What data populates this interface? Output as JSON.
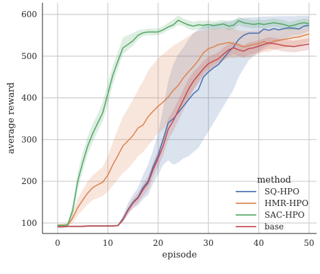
{
  "chart_data": {
    "type": "line",
    "xlabel": "episode",
    "ylabel": "average reward",
    "xlim": [
      -3,
      51.5
    ],
    "ylim": [
      75,
      628
    ],
    "xticks": [
      0,
      10,
      20,
      30,
      40,
      50
    ],
    "yticks": [
      100,
      200,
      300,
      400,
      500,
      600
    ],
    "xtick_labels": [
      "0",
      "10",
      "20",
      "30",
      "40",
      "50"
    ],
    "ytick_labels": [
      "100",
      "200",
      "300",
      "400",
      "500",
      "600"
    ],
    "grid": true,
    "legend": {
      "title": "method",
      "placement": "lower-right",
      "entries": [
        "SQ-HPO",
        "HMR-HPO",
        "SAC-HPO",
        "base"
      ]
    },
    "x": [
      0,
      1,
      2,
      3,
      4,
      5,
      6,
      7,
      8,
      9,
      10,
      11,
      12,
      13,
      14,
      15,
      16,
      17,
      18,
      19,
      20,
      21,
      22,
      23,
      24,
      25,
      26,
      27,
      28,
      29,
      30,
      31,
      32,
      33,
      34,
      35,
      36,
      37,
      38,
      39,
      40,
      41,
      42,
      43,
      44,
      45,
      46,
      47,
      48,
      49,
      50
    ],
    "series": [
      {
        "name": "SQ-HPO",
        "color": "#4c72b0",
        "values": [
          91,
          91,
          92,
          92,
          92,
          92,
          93,
          93,
          93,
          93,
          93,
          93,
          94,
          110,
          132,
          150,
          162,
          185,
          200,
          235,
          262,
          300,
          340,
          350,
          365,
          380,
          395,
          410,
          420,
          450,
          462,
          472,
          480,
          495,
          510,
          522,
          540,
          550,
          555,
          555,
          555,
          565,
          562,
          566,
          563,
          566,
          568,
          567,
          565,
          572,
          574
        ],
        "band_low": [
          89,
          89,
          90,
          90,
          90,
          90,
          91,
          91,
          91,
          91,
          91,
          91,
          92,
          103,
          120,
          135,
          142,
          158,
          167,
          195,
          215,
          240,
          250,
          240,
          245,
          255,
          260,
          270,
          280,
          300,
          320,
          340,
          360,
          380,
          400,
          420,
          450,
          470,
          490,
          500,
          510,
          520,
          525,
          530,
          535,
          540,
          545,
          550,
          550,
          555,
          560
        ],
        "band_high": [
          93,
          93,
          94,
          94,
          94,
          94,
          95,
          95,
          95,
          95,
          95,
          95,
          96,
          118,
          148,
          168,
          185,
          215,
          240,
          275,
          315,
          375,
          440,
          480,
          505,
          520,
          540,
          555,
          565,
          572,
          575,
          578,
          580,
          582,
          585,
          587,
          590,
          592,
          593,
          593,
          594,
          595,
          595,
          595,
          596,
          596,
          596,
          596,
          597,
          597,
          597
        ]
      },
      {
        "name": "HMR-HPO",
        "color": "#dd8452",
        "values": [
          95,
          95,
          95,
          112,
          137,
          155,
          172,
          185,
          192,
          198,
          215,
          240,
          262,
          285,
          297,
          310,
          328,
          335,
          355,
          368,
          380,
          390,
          402,
          418,
          430,
          448,
          462,
          475,
          490,
          508,
          518,
          522,
          528,
          530,
          533,
          530,
          527,
          522,
          525,
          528,
          530,
          535,
          530,
          536,
          538,
          540,
          542,
          545,
          546,
          550,
          553
        ],
        "band_low": [
          92,
          92,
          92,
          100,
          118,
          132,
          145,
          155,
          160,
          165,
          175,
          190,
          205,
          220,
          230,
          245,
          260,
          270,
          285,
          300,
          315,
          325,
          340,
          355,
          370,
          385,
          400,
          420,
          440,
          460,
          470,
          478,
          485,
          490,
          495,
          495,
          497,
          495,
          497,
          500,
          505,
          510,
          510,
          515,
          518,
          520,
          522,
          525,
          526,
          530,
          535
        ],
        "band_high": [
          98,
          98,
          100,
          125,
          158,
          180,
          200,
          215,
          225,
          235,
          260,
          295,
          325,
          355,
          375,
          395,
          420,
          440,
          465,
          480,
          495,
          505,
          515,
          525,
          532,
          540,
          548,
          555,
          560,
          562,
          565,
          565,
          566,
          566,
          567,
          565,
          562,
          560,
          560,
          562,
          562,
          563,
          563,
          564,
          564,
          565,
          566,
          567,
          568,
          568,
          570
        ]
      },
      {
        "name": "SAC-HPO",
        "color": "#55a868",
        "values": [
          94,
          94,
          96,
          130,
          200,
          245,
          285,
          315,
          340,
          365,
          410,
          455,
          488,
          520,
          528,
          537,
          550,
          556,
          558,
          558,
          558,
          563,
          570,
          575,
          586,
          580,
          575,
          572,
          575,
          574,
          576,
          573,
          575,
          577,
          572,
          574,
          585,
          580,
          578,
          576,
          578,
          576,
          578,
          580,
          578,
          576,
          572,
          574,
          578,
          580,
          578
        ],
        "band_low": [
          92,
          92,
          93,
          115,
          180,
          225,
          265,
          295,
          320,
          345,
          385,
          432,
          470,
          505,
          515,
          525,
          540,
          548,
          550,
          550,
          550,
          555,
          562,
          567,
          575,
          572,
          565,
          562,
          565,
          564,
          566,
          563,
          565,
          567,
          562,
          564,
          575,
          570,
          568,
          566,
          568,
          566,
          568,
          570,
          568,
          566,
          562,
          564,
          568,
          570,
          568
        ],
        "band_high": [
          96,
          96,
          99,
          145,
          222,
          268,
          308,
          338,
          362,
          390,
          435,
          478,
          510,
          545,
          550,
          555,
          562,
          564,
          566,
          566,
          566,
          572,
          580,
          588,
          598,
          590,
          586,
          582,
          585,
          584,
          586,
          583,
          585,
          587,
          582,
          584,
          595,
          590,
          588,
          586,
          588,
          586,
          588,
          590,
          588,
          586,
          582,
          584,
          588,
          590,
          588
        ]
      },
      {
        "name": "base",
        "color": "#c44e52",
        "values": [
          91,
          91,
          92,
          92,
          92,
          92,
          93,
          93,
          93,
          93,
          93,
          93,
          94,
          108,
          130,
          148,
          160,
          180,
          196,
          228,
          255,
          285,
          325,
          345,
          370,
          395,
          420,
          440,
          455,
          470,
          482,
          488,
          494,
          505,
          515,
          520,
          515,
          512,
          518,
          520,
          524,
          528,
          532,
          530,
          528,
          525,
          524,
          523,
          525,
          527,
          529
        ],
        "band_low": [
          89,
          89,
          90,
          90,
          90,
          90,
          91,
          91,
          91,
          91,
          91,
          91,
          92,
          102,
          122,
          138,
          148,
          165,
          180,
          210,
          235,
          262,
          300,
          320,
          345,
          370,
          395,
          418,
          435,
          452,
          465,
          472,
          478,
          490,
          500,
          505,
          500,
          498,
          503,
          505,
          510,
          514,
          518,
          516,
          514,
          511,
          510,
          509,
          511,
          513,
          515
        ],
        "band_high": [
          93,
          93,
          94,
          94,
          94,
          94,
          95,
          95,
          95,
          95,
          95,
          95,
          96,
          114,
          138,
          158,
          172,
          195,
          212,
          246,
          275,
          308,
          350,
          370,
          395,
          420,
          445,
          462,
          475,
          488,
          499,
          504,
          510,
          520,
          530,
          535,
          530,
          526,
          533,
          535,
          538,
          542,
          546,
          544,
          542,
          539,
          538,
          537,
          539,
          541,
          543
        ]
      }
    ]
  }
}
